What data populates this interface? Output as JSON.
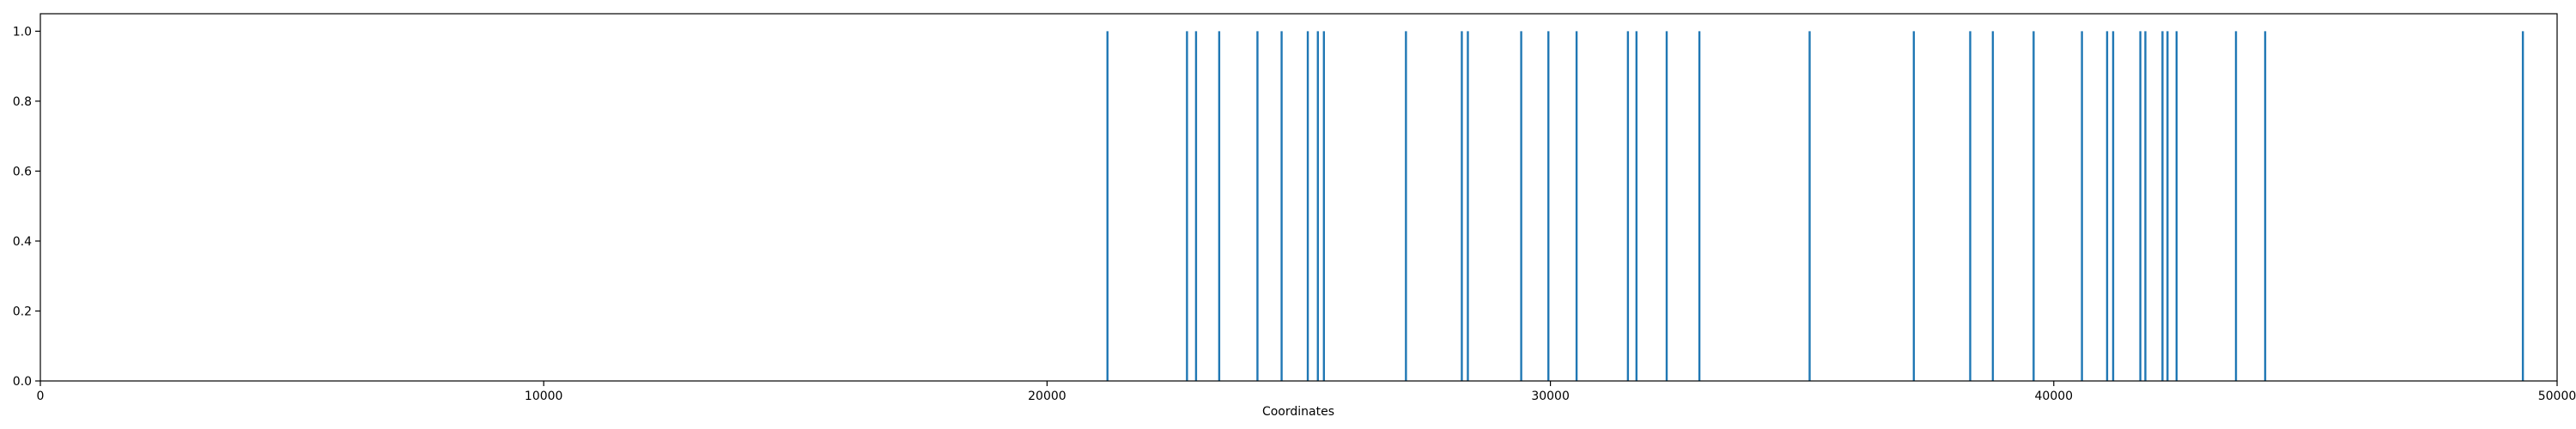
{
  "chart_data": {
    "type": "bar",
    "title": "",
    "xlabel": "Coordinates",
    "ylabel": "",
    "xlim": [
      0,
      50000
    ],
    "ylim": [
      0,
      1.05
    ],
    "x_ticks": [
      0,
      10000,
      20000,
      30000,
      40000,
      50000
    ],
    "x_tick_labels": [
      "0",
      "10000",
      "20000",
      "30000",
      "40000",
      "50000"
    ],
    "y_ticks": [
      0.0,
      0.2,
      0.4,
      0.6,
      0.8,
      1.0
    ],
    "y_tick_labels": [
      "0.0",
      "0.2",
      "0.4",
      "0.6",
      "0.8",
      "1.0"
    ],
    "grid": false,
    "legend": "none",
    "series": [
      {
        "color": "#1f77b4",
        "x": [
          21200,
          22780,
          22960,
          23420,
          24180,
          24660,
          25180,
          25380,
          25500,
          27130,
          28240,
          28360,
          29420,
          29960,
          30520,
          31540,
          31710,
          32310,
          32960,
          35150,
          37220,
          38340,
          38790,
          39600,
          40560,
          41060,
          41180,
          41720,
          41820,
          42160,
          42260,
          42440,
          43620,
          44200,
          49320
        ],
        "values": [
          1,
          1,
          1,
          1,
          1,
          1,
          1,
          1,
          1,
          1,
          1,
          1,
          1,
          1,
          1,
          1,
          1,
          1,
          1,
          1,
          1,
          1,
          1,
          1,
          1,
          1,
          1,
          1,
          1,
          1,
          1,
          1,
          1,
          1,
          1
        ]
      }
    ]
  }
}
